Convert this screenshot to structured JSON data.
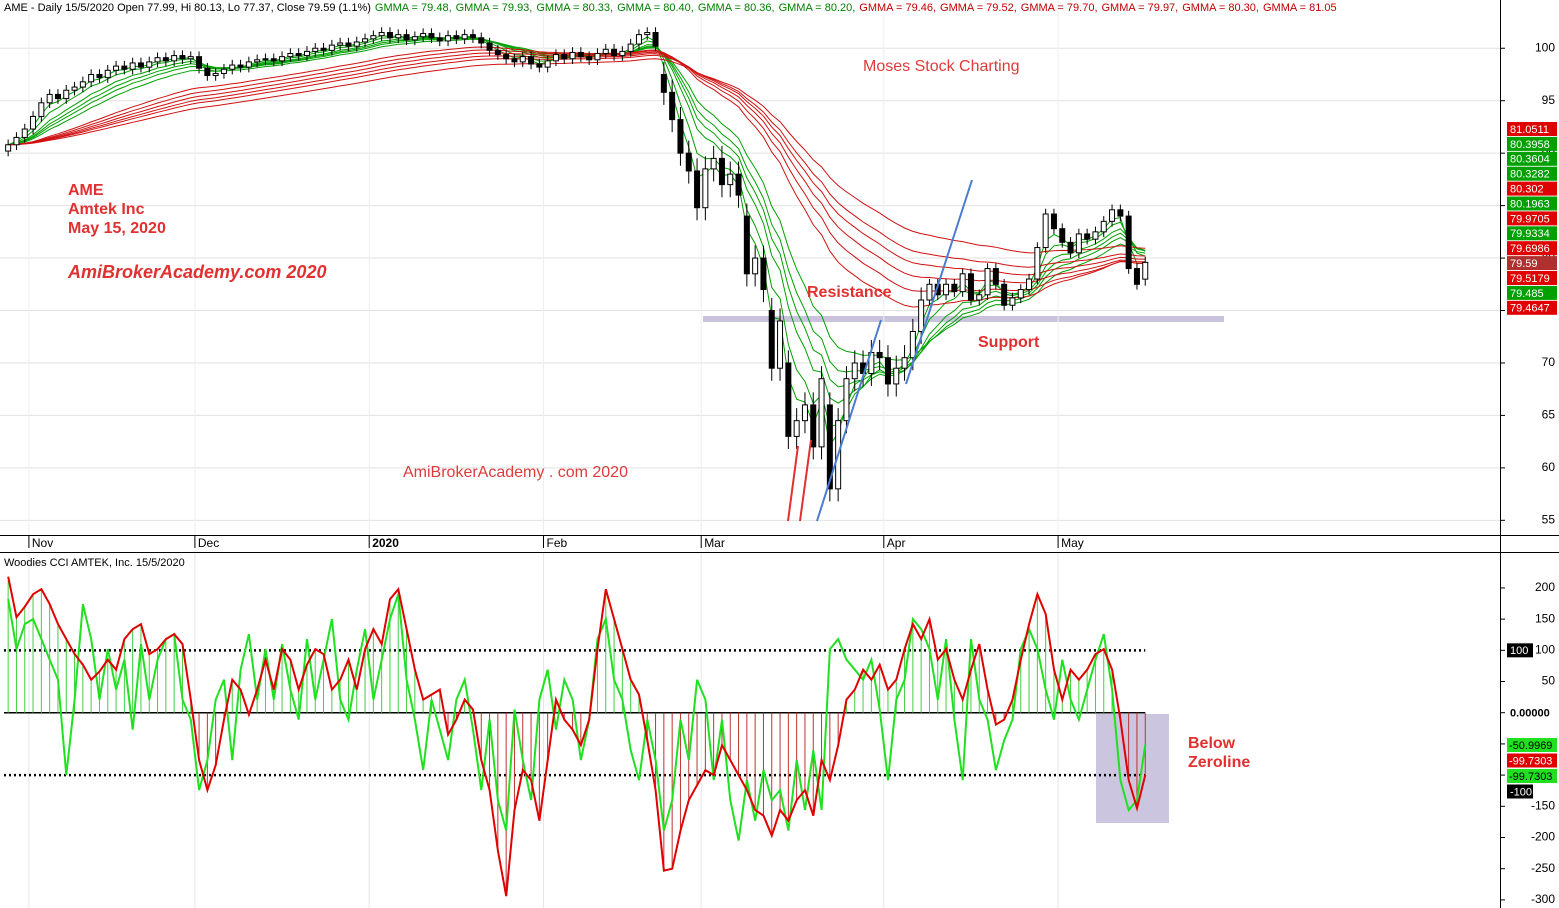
{
  "chart_data": [
    {
      "type": "candlestick",
      "title": "AME - Daily 15/5/2020 Open 77.99, Hi 80.13, Lo 77.37, Close 79.59 (1.1%)",
      "gmma_legend": [
        {
          "text": "GMMA = 79.48,",
          "color": "#008000"
        },
        {
          "text": "GMMA = 79.93,",
          "color": "#008000"
        },
        {
          "text": "GMMA = 80.33,",
          "color": "#008000"
        },
        {
          "text": "GMMA = 80.40,",
          "color": "#008000"
        },
        {
          "text": "GMMA = 80.36,",
          "color": "#008000"
        },
        {
          "text": "GMMA = 80.20,",
          "color": "#008000"
        },
        {
          "text": "GMMA = 79.46,",
          "color": "#c00000"
        },
        {
          "text": "GMMA = 79.52,",
          "color": "#c00000"
        },
        {
          "text": "GMMA = 79.70,",
          "color": "#c00000"
        },
        {
          "text": "GMMA = 79.97,",
          "color": "#c00000"
        },
        {
          "text": "GMMA = 80.30,",
          "color": "#c00000"
        },
        {
          "text": "GMMA = 81.05",
          "color": "#c00000"
        }
      ],
      "categories": [
        null,
        null,
        null,
        "Nov",
        null,
        null,
        null,
        null,
        null,
        null,
        null,
        null,
        null,
        null,
        null,
        null,
        null,
        null,
        null,
        null,
        null,
        null,
        null,
        "Dec",
        null,
        null,
        null,
        null,
        null,
        null,
        null,
        null,
        null,
        null,
        null,
        null,
        null,
        null,
        null,
        null,
        null,
        null,
        null,
        null,
        "2020",
        null,
        null,
        null,
        null,
        null,
        null,
        null,
        null,
        null,
        null,
        null,
        null,
        null,
        null,
        null,
        null,
        null,
        null,
        null,
        null,
        "Feb",
        null,
        null,
        null,
        null,
        null,
        null,
        null,
        null,
        null,
        null,
        null,
        null,
        null,
        null,
        null,
        null,
        null,
        null,
        "Mar",
        null,
        null,
        null,
        null,
        null,
        null,
        null,
        null,
        null,
        null,
        null,
        null,
        null,
        null,
        null,
        null,
        null,
        null,
        null,
        null,
        null,
        "Apr",
        null,
        null,
        null,
        null,
        null,
        null,
        null,
        null,
        null,
        null,
        null,
        null,
        null,
        null,
        null,
        null,
        null,
        null,
        null,
        null,
        "May",
        null,
        null,
        null,
        null,
        null,
        null,
        null,
        null,
        null,
        null
      ],
      "open": [
        90.2,
        90.8,
        91.5,
        92.3,
        93.5,
        94.8,
        95.6,
        95.2,
        96.0,
        96.3,
        96.8,
        97.5,
        97.2,
        97.9,
        98.3,
        98.0,
        98.6,
        98.2,
        98.7,
        99.1,
        98.8,
        99.3,
        99.0,
        99.2,
        98.1,
        97.4,
        97.6,
        98.0,
        98.4,
        98.2,
        98.7,
        98.9,
        99.0,
        98.8,
        99.2,
        99.5,
        99.3,
        99.7,
        100.0,
        99.8,
        100.3,
        100.5,
        100.2,
        100.6,
        100.9,
        101.2,
        101.5,
        101.0,
        101.3,
        100.8,
        101.1,
        101.4,
        101.0,
        100.7,
        101.2,
        100.9,
        101.3,
        101.0,
        100.5,
        99.8,
        99.4,
        99.0,
        98.7,
        99.2,
        98.5,
        98.2,
        98.8,
        99.4,
        99.0,
        99.6,
        99.2,
        98.9,
        99.5,
        99.9,
        99.3,
        99.7,
        100.4,
        101.3,
        101.5,
        97.5,
        95.8,
        93.2,
        90.0,
        88.3,
        84.8,
        88.5,
        89.5,
        87.0,
        88.0,
        84.0,
        78.5,
        80.0,
        75.0,
        69.5,
        70.0,
        63.0,
        64.5,
        66.0,
        62.0,
        66.0,
        58.0,
        64.5,
        68.5,
        70.0,
        69.0,
        71.0,
        70.5,
        68.0,
        69.5,
        70.5,
        73.0,
        76.0,
        77.5,
        76.5,
        77.5,
        76.8,
        78.5,
        76.0,
        76.5,
        79.0,
        77.5,
        75.5,
        76.2,
        77.0,
        78.0,
        81.0,
        84.2,
        82.8,
        81.5,
        80.5,
        82.3,
        81.8,
        82.5,
        83.5,
        84.6,
        84.0,
        79.0,
        77.99
      ],
      "high": [
        91.3,
        92.0,
        92.8,
        94.0,
        95.3,
        96.1,
        96.1,
        96.5,
        96.8,
        97.3,
        98.0,
        98.0,
        98.4,
        98.8,
        98.8,
        99.1,
        99.1,
        99.2,
        99.6,
        99.6,
        99.8,
        99.8,
        99.7,
        99.7,
        98.6,
        98.1,
        98.5,
        98.9,
        98.9,
        99.2,
        99.4,
        99.5,
        99.5,
        99.7,
        100.0,
        100.0,
        100.2,
        100.5,
        100.5,
        100.8,
        101.0,
        101.0,
        101.1,
        101.4,
        101.7,
        102.0,
        102.0,
        101.8,
        101.8,
        101.6,
        101.9,
        101.9,
        101.5,
        101.7,
        101.7,
        101.8,
        101.8,
        101.5,
        101.0,
        100.3,
        99.9,
        99.5,
        99.7,
        99.7,
        99.0,
        99.3,
        99.9,
        99.9,
        100.1,
        100.1,
        99.7,
        100.0,
        100.4,
        100.4,
        100.2,
        100.9,
        101.8,
        102.0,
        102.0,
        98.7,
        97.0,
        94.4,
        91.2,
        89.5,
        89.7,
        90.7,
        90.7,
        89.2,
        89.2,
        85.2,
        81.2,
        81.2,
        76.2,
        75.2,
        71.2,
        65.7,
        67.2,
        67.2,
        69.7,
        67.2,
        65.7,
        69.7,
        71.2,
        71.2,
        72.2,
        72.2,
        71.7,
        70.7,
        71.7,
        74.2,
        77.2,
        78.0,
        78.0,
        78.0,
        78.0,
        79.0,
        79.0,
        77.0,
        79.5,
        79.5,
        78.0,
        76.7,
        77.5,
        78.5,
        81.5,
        84.7,
        84.7,
        83.3,
        82.0,
        82.8,
        82.8,
        83.0,
        84.0,
        85.1,
        85.1,
        84.5,
        79.5,
        80.13
      ],
      "low": [
        89.7,
        90.3,
        91.0,
        91.8,
        93.0,
        94.3,
        94.7,
        94.7,
        95.5,
        95.8,
        96.3,
        96.7,
        96.7,
        97.4,
        97.5,
        97.5,
        97.7,
        97.7,
        98.2,
        98.3,
        98.3,
        98.5,
        98.5,
        97.6,
        96.9,
        96.9,
        97.1,
        97.5,
        97.7,
        97.7,
        98.2,
        98.4,
        98.3,
        98.3,
        98.7,
        98.8,
        98.8,
        99.2,
        99.3,
        99.3,
        99.8,
        99.7,
        99.7,
        100.1,
        100.4,
        100.7,
        100.5,
        100.5,
        100.3,
        100.3,
        100.6,
        100.5,
        100.2,
        100.2,
        100.4,
        100.4,
        100.5,
        100.0,
        99.3,
        98.9,
        98.5,
        98.2,
        98.2,
        98.0,
        97.7,
        97.7,
        98.3,
        98.5,
        98.5,
        98.7,
        98.4,
        98.4,
        99.0,
        98.8,
        98.8,
        99.2,
        99.9,
        100.8,
        99.7,
        94.6,
        92.0,
        88.8,
        87.1,
        83.6,
        83.6,
        87.3,
        85.8,
        85.8,
        84.8,
        77.3,
        77.3,
        75.8,
        68.3,
        68.3,
        61.8,
        61.8,
        63.3,
        60.8,
        60.8,
        56.8,
        56.8,
        63.3,
        67.3,
        67.8,
        67.8,
        69.3,
        66.8,
        66.8,
        68.3,
        69.3,
        71.8,
        75.5,
        76.0,
        76.0,
        76.3,
        76.3,
        75.5,
        75.5,
        76.0,
        77.0,
        75.0,
        75.0,
        75.7,
        76.5,
        77.5,
        80.5,
        82.3,
        81.0,
        80.0,
        80.0,
        81.3,
        81.3,
        82.0,
        83.0,
        83.5,
        78.5,
        77.0,
        77.37
      ],
      "close": [
        90.8,
        91.5,
        92.3,
        93.5,
        94.8,
        95.6,
        95.2,
        96.0,
        96.3,
        96.8,
        97.5,
        97.2,
        97.9,
        98.3,
        98.0,
        98.6,
        98.2,
        98.7,
        99.1,
        98.8,
        99.3,
        99.0,
        99.2,
        98.1,
        97.4,
        97.6,
        98.0,
        98.4,
        98.2,
        98.7,
        98.9,
        99.0,
        98.8,
        99.2,
        99.5,
        99.3,
        99.7,
        100.0,
        99.8,
        100.3,
        100.5,
        100.2,
        100.6,
        100.9,
        101.2,
        101.5,
        101.0,
        101.3,
        100.8,
        101.1,
        101.4,
        101.0,
        100.7,
        101.2,
        100.9,
        101.3,
        101.0,
        100.5,
        99.8,
        99.4,
        99.0,
        98.7,
        99.2,
        98.5,
        98.2,
        98.8,
        99.4,
        99.0,
        99.6,
        99.2,
        98.9,
        99.5,
        99.9,
        99.3,
        99.7,
        100.4,
        101.3,
        101.5,
        100.2,
        95.8,
        93.2,
        90.0,
        88.3,
        84.8,
        88.5,
        89.5,
        87.0,
        88.0,
        86.0,
        78.5,
        80.0,
        77.0,
        69.5,
        74.0,
        63.0,
        64.5,
        66.0,
        62.0,
        68.5,
        58.0,
        64.5,
        68.5,
        70.0,
        69.0,
        71.0,
        70.5,
        68.0,
        69.5,
        70.5,
        73.0,
        76.0,
        77.5,
        76.5,
        77.5,
        76.8,
        78.5,
        76.0,
        76.5,
        79.0,
        77.5,
        75.5,
        76.2,
        77.0,
        78.0,
        81.0,
        84.2,
        82.8,
        81.5,
        80.5,
        82.3,
        81.8,
        82.5,
        83.5,
        84.6,
        84.0,
        79.0,
        77.5,
        79.59
      ],
      "ylim": [
        53.6,
        104.6
      ],
      "yticks": [
        55,
        60,
        65,
        70,
        75,
        80,
        85,
        90,
        95,
        100
      ],
      "grid": true,
      "gmma": {
        "periods": [
          3,
          5,
          8,
          10,
          12,
          15,
          30,
          35,
          40,
          45,
          50,
          60
        ],
        "colors": [
          "#00a000",
          "#00a000",
          "#00a000",
          "#00a000",
          "#00a000",
          "#00a000",
          "#d01010",
          "#d01010",
          "#d01010",
          "#d01010",
          "#d01010",
          "#d01010"
        ]
      },
      "annotations": [
        "Moses Stock Charting",
        "AME",
        "Amtek Inc",
        "May 15, 2020",
        "AmiBrokerAcademy.com 2020",
        "Resistance",
        "Support",
        "AmiBrokerAcademy . com  2020"
      ],
      "last_value_labels": {
        "values": [
          81.0511,
          80.3958,
          80.3604,
          80.3282,
          80.302,
          80.1963,
          79.9705,
          79.9334,
          79.6986,
          79.59,
          79.5179,
          79.485,
          79.4647
        ],
        "colors": [
          "#e00000",
          "#00a000",
          "#00a000",
          "#00a000",
          "#e00000",
          "#00a000",
          "#e00000",
          "#00a000",
          "#e00000",
          "#b03030",
          "#e00000",
          "#00a000",
          "#e00000"
        ]
      }
    },
    {
      "type": "line",
      "title": "Woodies CCI  AMTEK, Inc. 15/5/2020",
      "series": [
        {
          "color": "#e00000",
          "histogram": true,
          "values": [
            218,
            153,
            170,
            190,
            198,
            174,
            142,
            118,
            94,
            77,
            53,
            66,
            85,
            69,
            118,
            134,
            142,
            94,
            102,
            118,
            126,
            110,
            21,
            -76,
            -124,
            -84,
            -11,
            53,
            37,
            -3,
            37,
            85,
            37,
            102,
            85,
            37,
            77,
            102,
            94,
            37,
            53,
            85,
            37,
            102,
            134,
            110,
            182,
            198,
            134,
            69,
            21,
            29,
            37,
            -35,
            -11,
            21,
            5,
            -76,
            -124,
            -221,
            -294,
            -156,
            -92,
            -108,
            -173,
            -76,
            21,
            -11,
            -27,
            -52,
            -11,
            102,
            198,
            150,
            102,
            53,
            29,
            -44,
            -124,
            -253,
            -250,
            -189,
            -140,
            -116,
            -92,
            -100,
            -52,
            -76,
            -100,
            -124,
            -156,
            -165,
            -197,
            -156,
            -173,
            -140,
            -124,
            -165,
            -76,
            -108,
            -52,
            21,
            37,
            69,
            53,
            77,
            37,
            53,
            102,
            142,
            118,
            150,
            85,
            102,
            53,
            21,
            69,
            110,
            37,
            -19,
            -11,
            21,
            85,
            142,
            190,
            158,
            69,
            21,
            69,
            53,
            69,
            94,
            102,
            69,
            -11,
            -108,
            -153,
            -99.7303
          ]
        },
        {
          "color": "#20e020",
          "values": [
            182,
            102,
            142,
            150,
            118,
            85,
            53,
            -100,
            21,
            174,
            118,
            21,
            102,
            37,
            85,
            -27,
            110,
            21,
            85,
            118,
            126,
            21,
            -11,
            -124,
            -76,
            21,
            53,
            -76,
            69,
            126,
            21,
            102,
            21,
            110,
            37,
            -11,
            118,
            21,
            85,
            150,
            21,
            -11,
            69,
            134,
            21,
            85,
            150,
            190,
            53,
            -11,
            -92,
            21,
            -27,
            -76,
            21,
            53,
            -27,
            -124,
            -11,
            -140,
            -189,
            5,
            -76,
            -140,
            21,
            69,
            -27,
            53,
            21,
            -76,
            -11,
            118,
            150,
            53,
            21,
            -60,
            -108,
            -11,
            -76,
            -189,
            -140,
            -11,
            -76,
            53,
            21,
            -108,
            -11,
            -140,
            -205,
            -108,
            -173,
            -92,
            -140,
            -124,
            -189,
            -76,
            -156,
            -60,
            -156,
            102,
            118,
            85,
            69,
            53,
            85,
            5,
            -108,
            21,
            53,
            150,
            134,
            102,
            21,
            118,
            -11,
            -108,
            118,
            21,
            -11,
            -92,
            -44,
            -11,
            102,
            134,
            102,
            37,
            -11,
            85,
            21,
            -11,
            37,
            85,
            126,
            37,
            -108,
            -156,
            -140,
            -50.9969
          ]
        }
      ],
      "ylim": [
        -313,
        256
      ],
      "yticks": [
        200,
        150,
        100,
        50,
        0,
        -50,
        -100,
        -150,
        -200,
        -250,
        -300
      ],
      "reference_lines": [
        {
          "value": 100,
          "style": "dotted",
          "box_color": "#000000"
        },
        {
          "value": 0,
          "label": "0.00000",
          "style": "solid",
          "box_color": "#ffffff"
        },
        {
          "value": -100,
          "style": "dotted",
          "box_color": "#000000"
        }
      ],
      "last_value_labels": {
        "values": [
          -50.9969,
          -99.7303,
          -99.7303
        ],
        "colors": [
          "#20e020",
          "#e00000",
          "#20e020"
        ]
      },
      "annotations": [
        "Below",
        "Zeroline"
      ]
    }
  ]
}
